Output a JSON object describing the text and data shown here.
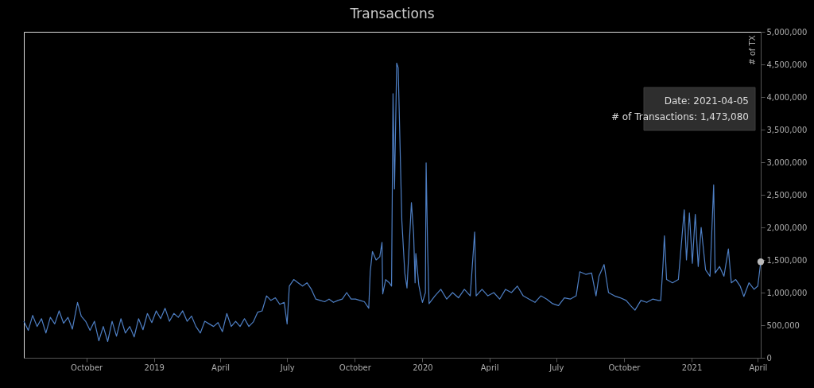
{
  "chart_data": {
    "type": "line",
    "title": "Transactions",
    "ylabel": "# of TX",
    "xlim": [
      "2018-07-08",
      "2021-04-05"
    ],
    "xticks": [
      {
        "value": "2018-10-01",
        "label": "October"
      },
      {
        "value": "2019-01-01",
        "label": "2019"
      },
      {
        "value": "2019-04-01",
        "label": "April"
      },
      {
        "value": "2019-07-01",
        "label": "July"
      },
      {
        "value": "2019-10-01",
        "label": "October"
      },
      {
        "value": "2020-01-01",
        "label": "2020"
      },
      {
        "value": "2020-04-01",
        "label": "April"
      },
      {
        "value": "2020-07-01",
        "label": "July"
      },
      {
        "value": "2020-10-01",
        "label": "October"
      },
      {
        "value": "2021-01-01",
        "label": "2021"
      },
      {
        "value": "2021-04-01",
        "label": "April"
      }
    ],
    "ylim": [
      0,
      5000000
    ],
    "yticks": [
      {
        "value": 0,
        "label": "0"
      },
      {
        "value": 500000,
        "label": "500,000"
      },
      {
        "value": 1000000,
        "label": "1,000,000"
      },
      {
        "value": 1500000,
        "label": "1,500,000"
      },
      {
        "value": 2000000,
        "label": "2,000,000"
      },
      {
        "value": 2500000,
        "label": "2,500,000"
      },
      {
        "value": 3000000,
        "label": "3,000,000"
      },
      {
        "value": 3500000,
        "label": "3,500,000"
      },
      {
        "value": 4000000,
        "label": "4,000,000"
      },
      {
        "value": 4500000,
        "label": "4,500,000"
      },
      {
        "value": 5000000,
        "label": "5,000,000"
      }
    ],
    "grid": false,
    "marker": "none",
    "line_style": "solid",
    "annotations": [
      "Date: 2021-04-05",
      "# of Transactions: 1,473,080"
    ],
    "series": [
      {
        "color": "#4e7fc4",
        "x": [
          "2018-07-08",
          "2018-07-14",
          "2018-07-20",
          "2018-07-26",
          "2018-08-01",
          "2018-08-07",
          "2018-08-13",
          "2018-08-19",
          "2018-08-25",
          "2018-08-31",
          "2018-09-06",
          "2018-09-12",
          "2018-09-19",
          "2018-09-24",
          "2018-09-30",
          "2018-10-06",
          "2018-10-12",
          "2018-10-18",
          "2018-10-24",
          "2018-10-30",
          "2018-11-05",
          "2018-11-11",
          "2018-11-17",
          "2018-11-23",
          "2018-11-29",
          "2018-12-05",
          "2018-12-11",
          "2018-12-17",
          "2018-12-23",
          "2018-12-29",
          "2019-01-04",
          "2019-01-10",
          "2019-01-16",
          "2019-01-22",
          "2019-01-28",
          "2019-02-03",
          "2019-02-09",
          "2019-02-15",
          "2019-02-21",
          "2019-02-27",
          "2019-03-05",
          "2019-03-11",
          "2019-03-17",
          "2019-03-23",
          "2019-03-29",
          "2019-04-04",
          "2019-04-10",
          "2019-04-16",
          "2019-04-22",
          "2019-04-28",
          "2019-05-04",
          "2019-05-10",
          "2019-05-16",
          "2019-05-22",
          "2019-05-28",
          "2019-06-03",
          "2019-06-09",
          "2019-06-15",
          "2019-06-21",
          "2019-06-27",
          "2019-07-01",
          "2019-07-04",
          "2019-07-10",
          "2019-07-16",
          "2019-07-22",
          "2019-07-28",
          "2019-08-03",
          "2019-08-09",
          "2019-08-15",
          "2019-08-21",
          "2019-08-27",
          "2019-09-02",
          "2019-09-08",
          "2019-09-14",
          "2019-09-20",
          "2019-09-26",
          "2019-10-02",
          "2019-10-08",
          "2019-10-14",
          "2019-10-20",
          "2019-10-22",
          "2019-10-25",
          "2019-10-30",
          "2019-11-04",
          "2019-11-07",
          "2019-11-08",
          "2019-11-12",
          "2019-11-17",
          "2019-11-20",
          "2019-11-22",
          "2019-11-24",
          "2019-11-27",
          "2019-11-29",
          "2019-12-04",
          "2019-12-08",
          "2019-12-11",
          "2019-12-17",
          "2019-12-20",
          "2019-12-22",
          "2019-12-23",
          "2019-12-27",
          "2019-12-29",
          "2020-01-01",
          "2020-01-05",
          "2020-01-06",
          "2020-01-08",
          "2020-01-10",
          "2020-01-18",
          "2020-01-26",
          "2020-02-03",
          "2020-02-11",
          "2020-02-19",
          "2020-02-27",
          "2020-03-06",
          "2020-03-12",
          "2020-03-14",
          "2020-03-22",
          "2020-03-30",
          "2020-04-07",
          "2020-04-15",
          "2020-04-23",
          "2020-05-01",
          "2020-05-09",
          "2020-05-17",
          "2020-05-25",
          "2020-06-02",
          "2020-06-10",
          "2020-06-18",
          "2020-06-26",
          "2020-07-04",
          "2020-07-12",
          "2020-07-20",
          "2020-07-28",
          "2020-08-02",
          "2020-08-10",
          "2020-08-18",
          "2020-08-24",
          "2020-08-28",
          "2020-09-04",
          "2020-09-10",
          "2020-09-18",
          "2020-09-26",
          "2020-10-04",
          "2020-10-10",
          "2020-10-16",
          "2020-10-24",
          "2020-11-01",
          "2020-11-09",
          "2020-11-17",
          "2020-11-20",
          "2020-11-23",
          "2020-11-25",
          "2020-11-28",
          "2020-12-06",
          "2020-12-14",
          "2020-12-22",
          "2020-12-25",
          "2020-12-29",
          "2021-01-02",
          "2021-01-06",
          "2021-01-10",
          "2021-01-14",
          "2021-01-20",
          "2021-01-26",
          "2021-01-31",
          "2021-02-02",
          "2021-02-08",
          "2021-02-14",
          "2021-02-20",
          "2021-02-24",
          "2021-03-02",
          "2021-03-08",
          "2021-03-13",
          "2021-03-20",
          "2021-03-27",
          "2021-04-01",
          "2021-04-05"
        ],
        "values": [
          560000,
          420000,
          650000,
          480000,
          600000,
          380000,
          620000,
          520000,
          720000,
          530000,
          620000,
          440000,
          850000,
          640000,
          560000,
          420000,
          560000,
          260000,
          480000,
          250000,
          560000,
          330000,
          600000,
          380000,
          480000,
          320000,
          600000,
          430000,
          680000,
          540000,
          720000,
          600000,
          760000,
          560000,
          680000,
          620000,
          720000,
          560000,
          640000,
          480000,
          380000,
          560000,
          520000,
          480000,
          540000,
          400000,
          680000,
          480000,
          560000,
          480000,
          600000,
          480000,
          550000,
          700000,
          720000,
          950000,
          880000,
          920000,
          820000,
          850000,
          520000,
          1100000,
          1200000,
          1150000,
          1100000,
          1150000,
          1050000,
          900000,
          880000,
          860000,
          900000,
          850000,
          880000,
          900000,
          1000000,
          900000,
          900000,
          880000,
          860000,
          760000,
          1320000,
          1630000,
          1500000,
          1550000,
          1770000,
          980000,
          1200000,
          1150000,
          1100000,
          4050000,
          2590000,
          4520000,
          4450000,
          2100000,
          1300000,
          1070000,
          2380000,
          1900000,
          1150000,
          1600000,
          1120000,
          1000000,
          850000,
          1000000,
          2990000,
          1700000,
          830000,
          950000,
          1050000,
          900000,
          1000000,
          920000,
          1050000,
          950000,
          1930000,
          950000,
          1050000,
          950000,
          1000000,
          900000,
          1050000,
          1000000,
          1100000,
          950000,
          900000,
          850000,
          950000,
          900000,
          830000,
          800000,
          920000,
          900000,
          950000,
          1320000,
          1280000,
          1300000,
          950000,
          1250000,
          1430000,
          1000000,
          950000,
          920000,
          880000,
          800000,
          730000,
          880000,
          850000,
          900000,
          880000,
          880000,
          1400000,
          1870000,
          1200000,
          1150000,
          1200000,
          2270000,
          1500000,
          2220000,
          1450000,
          2200000,
          1400000,
          2000000,
          1350000,
          1250000,
          2650000,
          1300000,
          1400000,
          1250000,
          1670000,
          1150000,
          1200000,
          1100000,
          940000,
          1150000,
          1050000,
          1100000,
          1473080
        ]
      }
    ]
  }
}
